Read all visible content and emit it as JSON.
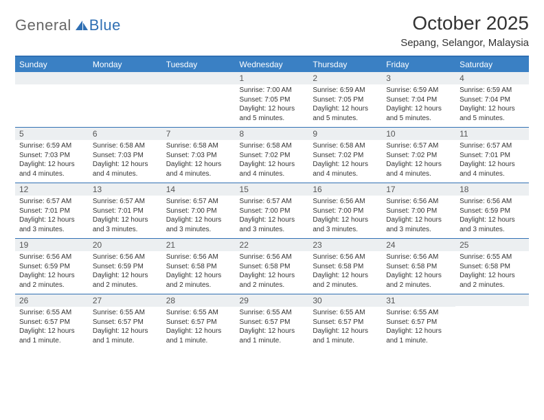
{
  "logo": {
    "text_general": "General",
    "text_blue": "Blue",
    "icon_color": "#2f6fb3"
  },
  "header": {
    "month_title": "October 2025",
    "location": "Sepang, Selangor, Malaysia"
  },
  "colors": {
    "header_bg": "#3a80c4",
    "border": "#2f6fb3",
    "daynum_bg": "#eceff1",
    "text": "#333333"
  },
  "weekdays": [
    "Sunday",
    "Monday",
    "Tuesday",
    "Wednesday",
    "Thursday",
    "Friday",
    "Saturday"
  ],
  "weeks": [
    [
      null,
      null,
      null,
      {
        "n": "1",
        "sr": "Sunrise: 7:00 AM",
        "ss": "Sunset: 7:05 PM",
        "dl": "Daylight: 12 hours and 5 minutes."
      },
      {
        "n": "2",
        "sr": "Sunrise: 6:59 AM",
        "ss": "Sunset: 7:05 PM",
        "dl": "Daylight: 12 hours and 5 minutes."
      },
      {
        "n": "3",
        "sr": "Sunrise: 6:59 AM",
        "ss": "Sunset: 7:04 PM",
        "dl": "Daylight: 12 hours and 5 minutes."
      },
      {
        "n": "4",
        "sr": "Sunrise: 6:59 AM",
        "ss": "Sunset: 7:04 PM",
        "dl": "Daylight: 12 hours and 5 minutes."
      }
    ],
    [
      {
        "n": "5",
        "sr": "Sunrise: 6:59 AM",
        "ss": "Sunset: 7:03 PM",
        "dl": "Daylight: 12 hours and 4 minutes."
      },
      {
        "n": "6",
        "sr": "Sunrise: 6:58 AM",
        "ss": "Sunset: 7:03 PM",
        "dl": "Daylight: 12 hours and 4 minutes."
      },
      {
        "n": "7",
        "sr": "Sunrise: 6:58 AM",
        "ss": "Sunset: 7:03 PM",
        "dl": "Daylight: 12 hours and 4 minutes."
      },
      {
        "n": "8",
        "sr": "Sunrise: 6:58 AM",
        "ss": "Sunset: 7:02 PM",
        "dl": "Daylight: 12 hours and 4 minutes."
      },
      {
        "n": "9",
        "sr": "Sunrise: 6:58 AM",
        "ss": "Sunset: 7:02 PM",
        "dl": "Daylight: 12 hours and 4 minutes."
      },
      {
        "n": "10",
        "sr": "Sunrise: 6:57 AM",
        "ss": "Sunset: 7:02 PM",
        "dl": "Daylight: 12 hours and 4 minutes."
      },
      {
        "n": "11",
        "sr": "Sunrise: 6:57 AM",
        "ss": "Sunset: 7:01 PM",
        "dl": "Daylight: 12 hours and 4 minutes."
      }
    ],
    [
      {
        "n": "12",
        "sr": "Sunrise: 6:57 AM",
        "ss": "Sunset: 7:01 PM",
        "dl": "Daylight: 12 hours and 3 minutes."
      },
      {
        "n": "13",
        "sr": "Sunrise: 6:57 AM",
        "ss": "Sunset: 7:01 PM",
        "dl": "Daylight: 12 hours and 3 minutes."
      },
      {
        "n": "14",
        "sr": "Sunrise: 6:57 AM",
        "ss": "Sunset: 7:00 PM",
        "dl": "Daylight: 12 hours and 3 minutes."
      },
      {
        "n": "15",
        "sr": "Sunrise: 6:57 AM",
        "ss": "Sunset: 7:00 PM",
        "dl": "Daylight: 12 hours and 3 minutes."
      },
      {
        "n": "16",
        "sr": "Sunrise: 6:56 AM",
        "ss": "Sunset: 7:00 PM",
        "dl": "Daylight: 12 hours and 3 minutes."
      },
      {
        "n": "17",
        "sr": "Sunrise: 6:56 AM",
        "ss": "Sunset: 7:00 PM",
        "dl": "Daylight: 12 hours and 3 minutes."
      },
      {
        "n": "18",
        "sr": "Sunrise: 6:56 AM",
        "ss": "Sunset: 6:59 PM",
        "dl": "Daylight: 12 hours and 3 minutes."
      }
    ],
    [
      {
        "n": "19",
        "sr": "Sunrise: 6:56 AM",
        "ss": "Sunset: 6:59 PM",
        "dl": "Daylight: 12 hours and 2 minutes."
      },
      {
        "n": "20",
        "sr": "Sunrise: 6:56 AM",
        "ss": "Sunset: 6:59 PM",
        "dl": "Daylight: 12 hours and 2 minutes."
      },
      {
        "n": "21",
        "sr": "Sunrise: 6:56 AM",
        "ss": "Sunset: 6:58 PM",
        "dl": "Daylight: 12 hours and 2 minutes."
      },
      {
        "n": "22",
        "sr": "Sunrise: 6:56 AM",
        "ss": "Sunset: 6:58 PM",
        "dl": "Daylight: 12 hours and 2 minutes."
      },
      {
        "n": "23",
        "sr": "Sunrise: 6:56 AM",
        "ss": "Sunset: 6:58 PM",
        "dl": "Daylight: 12 hours and 2 minutes."
      },
      {
        "n": "24",
        "sr": "Sunrise: 6:56 AM",
        "ss": "Sunset: 6:58 PM",
        "dl": "Daylight: 12 hours and 2 minutes."
      },
      {
        "n": "25",
        "sr": "Sunrise: 6:55 AM",
        "ss": "Sunset: 6:58 PM",
        "dl": "Daylight: 12 hours and 2 minutes."
      }
    ],
    [
      {
        "n": "26",
        "sr": "Sunrise: 6:55 AM",
        "ss": "Sunset: 6:57 PM",
        "dl": "Daylight: 12 hours and 1 minute."
      },
      {
        "n": "27",
        "sr": "Sunrise: 6:55 AM",
        "ss": "Sunset: 6:57 PM",
        "dl": "Daylight: 12 hours and 1 minute."
      },
      {
        "n": "28",
        "sr": "Sunrise: 6:55 AM",
        "ss": "Sunset: 6:57 PM",
        "dl": "Daylight: 12 hours and 1 minute."
      },
      {
        "n": "29",
        "sr": "Sunrise: 6:55 AM",
        "ss": "Sunset: 6:57 PM",
        "dl": "Daylight: 12 hours and 1 minute."
      },
      {
        "n": "30",
        "sr": "Sunrise: 6:55 AM",
        "ss": "Sunset: 6:57 PM",
        "dl": "Daylight: 12 hours and 1 minute."
      },
      {
        "n": "31",
        "sr": "Sunrise: 6:55 AM",
        "ss": "Sunset: 6:57 PM",
        "dl": "Daylight: 12 hours and 1 minute."
      },
      null
    ]
  ]
}
